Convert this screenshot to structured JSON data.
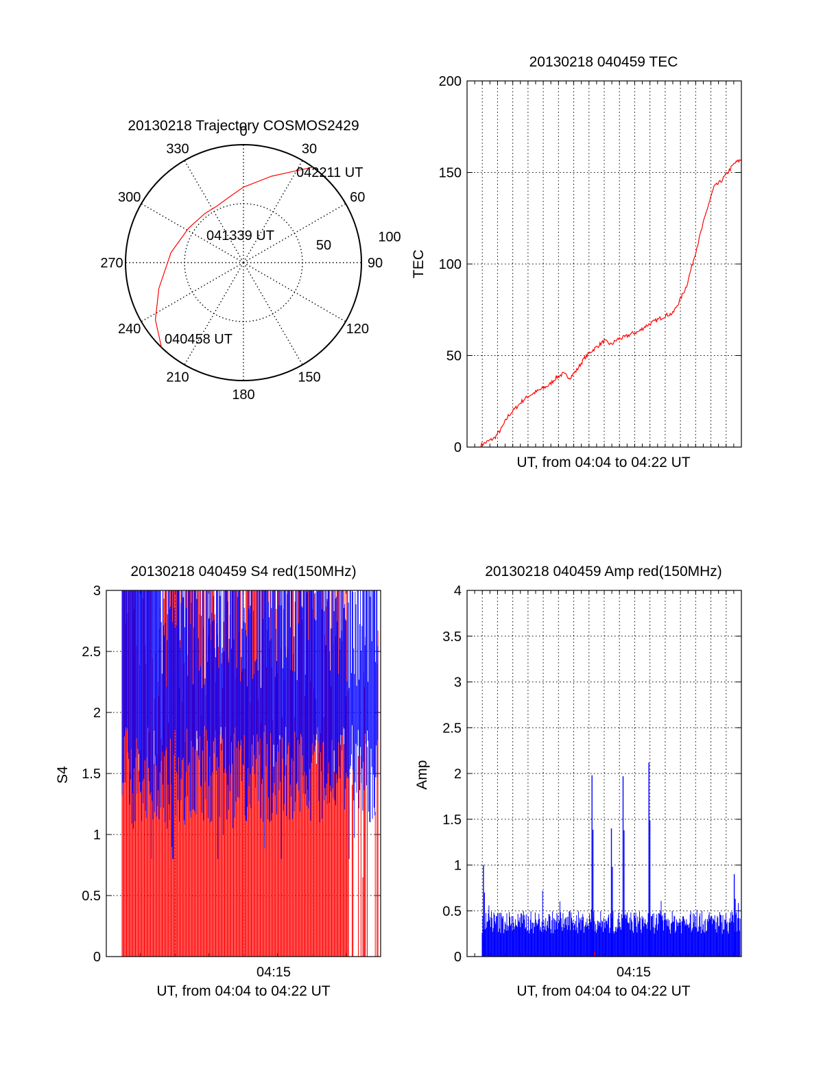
{
  "colors": {
    "primary_series": "#ff0000",
    "secondary_series": "#0000ff",
    "grid": "#000000",
    "background": "#ffffff"
  },
  "chart_data": [
    {
      "type": "polar",
      "title": "20130218 Trajectory COSMOS2429",
      "azimuth_labels": [
        "0",
        "30",
        "60",
        "90",
        "120",
        "150",
        "180",
        "210",
        "240",
        "270",
        "300",
        "330"
      ],
      "radial_labels": [
        "50",
        "100"
      ],
      "rlim": [
        0,
        100
      ],
      "grid": true,
      "annotations": [
        "042211 UT",
        "041339 UT",
        "040458 UT"
      ],
      "series": [
        {
          "type": "line",
          "color": "#ff0000",
          "azimuth": [
            36,
            30,
            18,
            0,
            -12,
            -25,
            -38,
            -58,
            -82,
            -107,
            -123,
            -136
          ],
          "radius": [
            100,
            90,
            77,
            64,
            57,
            53,
            53,
            55,
            62,
            75,
            89,
            100
          ]
        }
      ]
    },
    {
      "type": "line",
      "title": "20130218 040459 TEC",
      "xlabel": "UT, from 04:04 to 04:22 UT",
      "ylabel": "TEC",
      "xlim": [
        0,
        20
      ],
      "ylim": [
        0,
        200
      ],
      "yticks": [
        "0",
        "50",
        "100",
        "150",
        "200"
      ],
      "grid": true,
      "series": [
        {
          "color": "#ff0000",
          "x": [
            1.0,
            1.5,
            2.0,
            2.5,
            3.0,
            3.5,
            4.0,
            4.5,
            5.0,
            5.5,
            6.0,
            6.5,
            7.0,
            7.5,
            8.0,
            8.5,
            9.0,
            9.5,
            10.0,
            10.5,
            11.0,
            11.5,
            12.0,
            12.5,
            13.0,
            13.5,
            14.0,
            14.5,
            15.0,
            15.5,
            16.0,
            16.5,
            17.0,
            17.5,
            18.0,
            18.5,
            19.0,
            19.5,
            20.0
          ],
          "y": [
            1,
            3,
            5,
            10,
            17,
            21,
            25,
            28,
            30,
            32,
            34,
            38,
            40,
            38,
            42,
            48,
            52,
            55,
            58,
            56,
            59,
            60,
            62,
            63,
            66,
            68,
            70,
            72,
            73,
            80,
            88,
            102,
            116,
            130,
            142,
            145,
            150,
            155,
            157
          ]
        }
      ]
    },
    {
      "type": "bar",
      "title": "20130218 040459 S4 red(150MHz)",
      "xlabel": "UT, from 04:04 to 04:22 UT",
      "ylabel": "S4",
      "xticks": [
        "04:15"
      ],
      "ylim": [
        0,
        3
      ],
      "yticks": [
        "0",
        "0.5",
        "1",
        "1.5",
        "2",
        "2.5",
        "3"
      ],
      "grid": true,
      "series": [
        {
          "color": "#ff0000",
          "y_range": [
            0,
            3
          ]
        },
        {
          "color": "#0000ff",
          "y_range": [
            1.0,
            3
          ]
        }
      ]
    },
    {
      "type": "bar",
      "title": "20130218 040459 Amp red(150MHz)",
      "xlabel": "UT, from 04:04 to 04:22 UT",
      "ylabel": "Amp",
      "xticks": [
        "04:15"
      ],
      "ylim": [
        0,
        4
      ],
      "yticks": [
        "0",
        "0.5",
        "1",
        "1.5",
        "2",
        "2.5",
        "3",
        "3.5",
        "4"
      ],
      "grid": true,
      "series": [
        {
          "color": "#0000ff",
          "baseline_max": 0.55,
          "peaks": [
            {
              "x": 0.1,
              "y": 1.0
            },
            {
              "x": 8.5,
              "y": 1.98
            },
            {
              "x": 10.0,
              "y": 1.4
            },
            {
              "x": 10.9,
              "y": 1.97
            },
            {
              "x": 12.9,
              "y": 2.12
            },
            {
              "x": 19.5,
              "y": 0.9
            }
          ]
        },
        {
          "color": "#ff0000",
          "peaks": [
            {
              "x": 8.7,
              "y": 0.05
            }
          ]
        }
      ]
    }
  ]
}
